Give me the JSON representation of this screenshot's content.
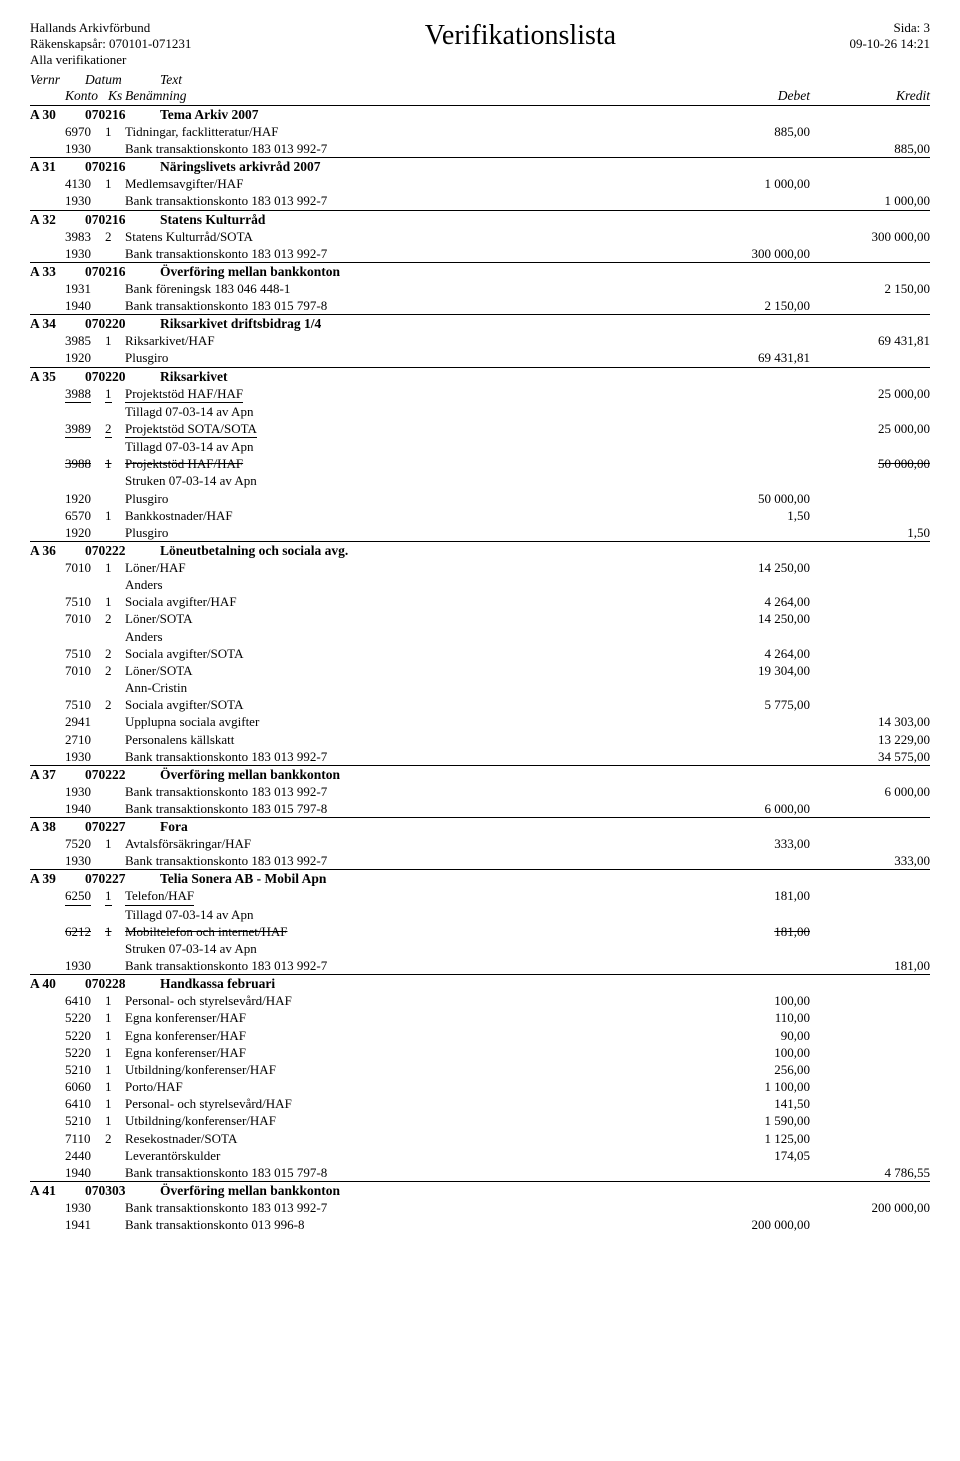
{
  "header": {
    "org": "Hallands Arkivförbund",
    "title": "Verifikationslista",
    "page": "Sida: 3",
    "year": "Räkenskapsår: 070101-071231",
    "timestamp": "09-10-26  14:21",
    "filter": "Alla verifikationer"
  },
  "cols": {
    "vernr": "Vernr",
    "datum": "Datum",
    "text": "Text",
    "konto": "Konto",
    "ks": "Ks",
    "ben": "Benämning",
    "debet": "Debet",
    "kredit": "Kredit"
  },
  "entries": [
    {
      "vernr": "A 30",
      "datum": "070216",
      "title": "Tema Arkiv 2007",
      "rows": [
        {
          "konto": "6970",
          "ks": "1",
          "ben": "Tidningar, facklitteratur/HAF",
          "debet": "885,00",
          "kredit": ""
        },
        {
          "konto": "1930",
          "ks": "",
          "ben": "Bank transaktionskonto 183 013 992-7",
          "debet": "",
          "kredit": "885,00"
        }
      ]
    },
    {
      "vernr": "A 31",
      "datum": "070216",
      "title": "Näringslivets arkivråd 2007",
      "rows": [
        {
          "konto": "4130",
          "ks": "1",
          "ben": "Medlemsavgifter/HAF",
          "debet": "1 000,00",
          "kredit": ""
        },
        {
          "konto": "1930",
          "ks": "",
          "ben": "Bank transaktionskonto 183 013 992-7",
          "debet": "",
          "kredit": "1 000,00"
        }
      ]
    },
    {
      "vernr": "A 32",
      "datum": "070216",
      "title": "Statens Kulturråd",
      "rows": [
        {
          "konto": "3983",
          "ks": "2",
          "ben": "Statens Kulturråd/SOTA",
          "debet": "",
          "kredit": "300 000,00"
        },
        {
          "konto": "1930",
          "ks": "",
          "ben": "Bank transaktionskonto 183 013 992-7",
          "debet": "300 000,00",
          "kredit": ""
        }
      ]
    },
    {
      "vernr": "A 33",
      "datum": "070216",
      "title": "Överföring mellan bankkonton",
      "rows": [
        {
          "konto": "1931",
          "ks": "",
          "ben": "Bank föreningsk          183 046 448-1",
          "debet": "",
          "kredit": "2 150,00"
        },
        {
          "konto": "1940",
          "ks": "",
          "ben": "Bank transaktionskonto 183 015 797-8",
          "debet": "2 150,00",
          "kredit": ""
        }
      ]
    },
    {
      "vernr": "A 34",
      "datum": "070220",
      "title": "Riksarkivet driftsbidrag 1/4",
      "rows": [
        {
          "konto": "3985",
          "ks": "1",
          "ben": "Riksarkivet/HAF",
          "debet": "",
          "kredit": "69 431,81"
        },
        {
          "konto": "1920",
          "ks": "",
          "ben": "Plusgiro",
          "debet": "69 431,81",
          "kredit": ""
        }
      ]
    },
    {
      "vernr": "A 35",
      "datum": "070220",
      "title": "Riksarkivet",
      "rows": [
        {
          "konto": "3988",
          "ks": "1",
          "ben": "Projektstöd HAF/HAF",
          "debet": "",
          "kredit": "25 000,00",
          "underline": true,
          "note": "Tillagd 07-03-14 av Apn"
        },
        {
          "konto": "3989",
          "ks": "2",
          "ben": "Projektstöd SOTA/SOTA",
          "debet": "",
          "kredit": "25 000,00",
          "underline": true,
          "note": "Tillagd 07-03-14 av Apn"
        },
        {
          "konto": "3988",
          "ks": "1",
          "ben": "Projektstöd HAF/HAF",
          "debet": "",
          "kredit": "50 000,00",
          "struck": true,
          "note": "Struken 07-03-14 av Apn"
        },
        {
          "konto": "1920",
          "ks": "",
          "ben": "Plusgiro",
          "debet": "50 000,00",
          "kredit": ""
        },
        {
          "konto": "6570",
          "ks": "1",
          "ben": "Bankkostnader/HAF",
          "debet": "1,50",
          "kredit": ""
        },
        {
          "konto": "1920",
          "ks": "",
          "ben": "Plusgiro",
          "debet": "",
          "kredit": "1,50"
        }
      ]
    },
    {
      "vernr": "A 36",
      "datum": "070222",
      "title": "Löneutbetalning och sociala avg.",
      "rows": [
        {
          "konto": "7010",
          "ks": "1",
          "ben": "Löner/HAF",
          "debet": "14 250,00",
          "kredit": "",
          "note": "Anders"
        },
        {
          "konto": "7510",
          "ks": "1",
          "ben": "Sociala avgifter/HAF",
          "debet": "4 264,00",
          "kredit": ""
        },
        {
          "konto": "7010",
          "ks": "2",
          "ben": "Löner/SOTA",
          "debet": "14 250,00",
          "kredit": "",
          "note": "Anders"
        },
        {
          "konto": "7510",
          "ks": "2",
          "ben": "Sociala avgifter/SOTA",
          "debet": "4 264,00",
          "kredit": ""
        },
        {
          "konto": "7010",
          "ks": "2",
          "ben": "Löner/SOTA",
          "debet": "19 304,00",
          "kredit": "",
          "note": "Ann-Cristin"
        },
        {
          "konto": "7510",
          "ks": "2",
          "ben": "Sociala avgifter/SOTA",
          "debet": "5 775,00",
          "kredit": ""
        },
        {
          "konto": "2941",
          "ks": "",
          "ben": "Upplupna sociala avgifter",
          "debet": "",
          "kredit": "14 303,00"
        },
        {
          "konto": "2710",
          "ks": "",
          "ben": "Personalens källskatt",
          "debet": "",
          "kredit": "13 229,00"
        },
        {
          "konto": "1930",
          "ks": "",
          "ben": "Bank transaktionskonto 183 013 992-7",
          "debet": "",
          "kredit": "34 575,00"
        }
      ]
    },
    {
      "vernr": "A 37",
      "datum": "070222",
      "title": "Överföring mellan bankkonton",
      "rows": [
        {
          "konto": "1930",
          "ks": "",
          "ben": "Bank transaktionskonto 183 013 992-7",
          "debet": "",
          "kredit": "6 000,00"
        },
        {
          "konto": "1940",
          "ks": "",
          "ben": "Bank transaktionskonto 183 015 797-8",
          "debet": "6 000,00",
          "kredit": ""
        }
      ]
    },
    {
      "vernr": "A 38",
      "datum": "070227",
      "title": "Fora",
      "rows": [
        {
          "konto": "7520",
          "ks": "1",
          "ben": "Avtalsförsäkringar/HAF",
          "debet": "333,00",
          "kredit": ""
        },
        {
          "konto": "1930",
          "ks": "",
          "ben": "Bank transaktionskonto 183 013 992-7",
          "debet": "",
          "kredit": "333,00"
        }
      ]
    },
    {
      "vernr": "A 39",
      "datum": "070227",
      "title": "Telia Sonera AB - Mobil Apn",
      "rows": [
        {
          "konto": "6250",
          "ks": "1",
          "ben": "Telefon/HAF",
          "debet": "181,00",
          "kredit": "",
          "underline": true,
          "note": "Tillagd 07-03-14 av Apn"
        },
        {
          "konto": "6212",
          "ks": "1",
          "ben": "Mobiltelefon och internet/HAF",
          "debet": "181,00",
          "kredit": "",
          "struck": true,
          "note": "Struken 07-03-14 av Apn"
        },
        {
          "konto": "1930",
          "ks": "",
          "ben": "Bank transaktionskonto 183 013 992-7",
          "debet": "",
          "kredit": "181,00"
        }
      ]
    },
    {
      "vernr": "A 40",
      "datum": "070228",
      "title": "Handkassa februari",
      "rows": [
        {
          "konto": "6410",
          "ks": "1",
          "ben": "Personal- och styrelsevård/HAF",
          "debet": "100,00",
          "kredit": ""
        },
        {
          "konto": "5220",
          "ks": "1",
          "ben": "Egna konferenser/HAF",
          "debet": "110,00",
          "kredit": ""
        },
        {
          "konto": "5220",
          "ks": "1",
          "ben": "Egna konferenser/HAF",
          "debet": "90,00",
          "kredit": ""
        },
        {
          "konto": "5220",
          "ks": "1",
          "ben": "Egna konferenser/HAF",
          "debet": "100,00",
          "kredit": ""
        },
        {
          "konto": "5210",
          "ks": "1",
          "ben": "Utbildning/konferenser/HAF",
          "debet": "256,00",
          "kredit": ""
        },
        {
          "konto": "6060",
          "ks": "1",
          "ben": "Porto/HAF",
          "debet": "1 100,00",
          "kredit": ""
        },
        {
          "konto": "6410",
          "ks": "1",
          "ben": "Personal- och styrelsevård/HAF",
          "debet": "141,50",
          "kredit": ""
        },
        {
          "konto": "5210",
          "ks": "1",
          "ben": "Utbildning/konferenser/HAF",
          "debet": "1 590,00",
          "kredit": ""
        },
        {
          "konto": "7110",
          "ks": "2",
          "ben": "Resekostnader/SOTA",
          "debet": "1 125,00",
          "kredit": ""
        },
        {
          "konto": "2440",
          "ks": "",
          "ben": "Leverantörskulder",
          "debet": "174,05",
          "kredit": ""
        },
        {
          "konto": "1940",
          "ks": "",
          "ben": "Bank transaktionskonto 183 015 797-8",
          "debet": "",
          "kredit": "4 786,55"
        }
      ]
    },
    {
      "vernr": "A 41",
      "datum": "070303",
      "title": "Överföring mellan bankkonton",
      "rows": [
        {
          "konto": "1930",
          "ks": "",
          "ben": "Bank transaktionskonto 183 013 992-7",
          "debet": "",
          "kredit": "200 000,00"
        },
        {
          "konto": "1941",
          "ks": "",
          "ben": "Bank transaktionskonto    013 996-8",
          "debet": "200 000,00",
          "kredit": ""
        }
      ]
    }
  ]
}
